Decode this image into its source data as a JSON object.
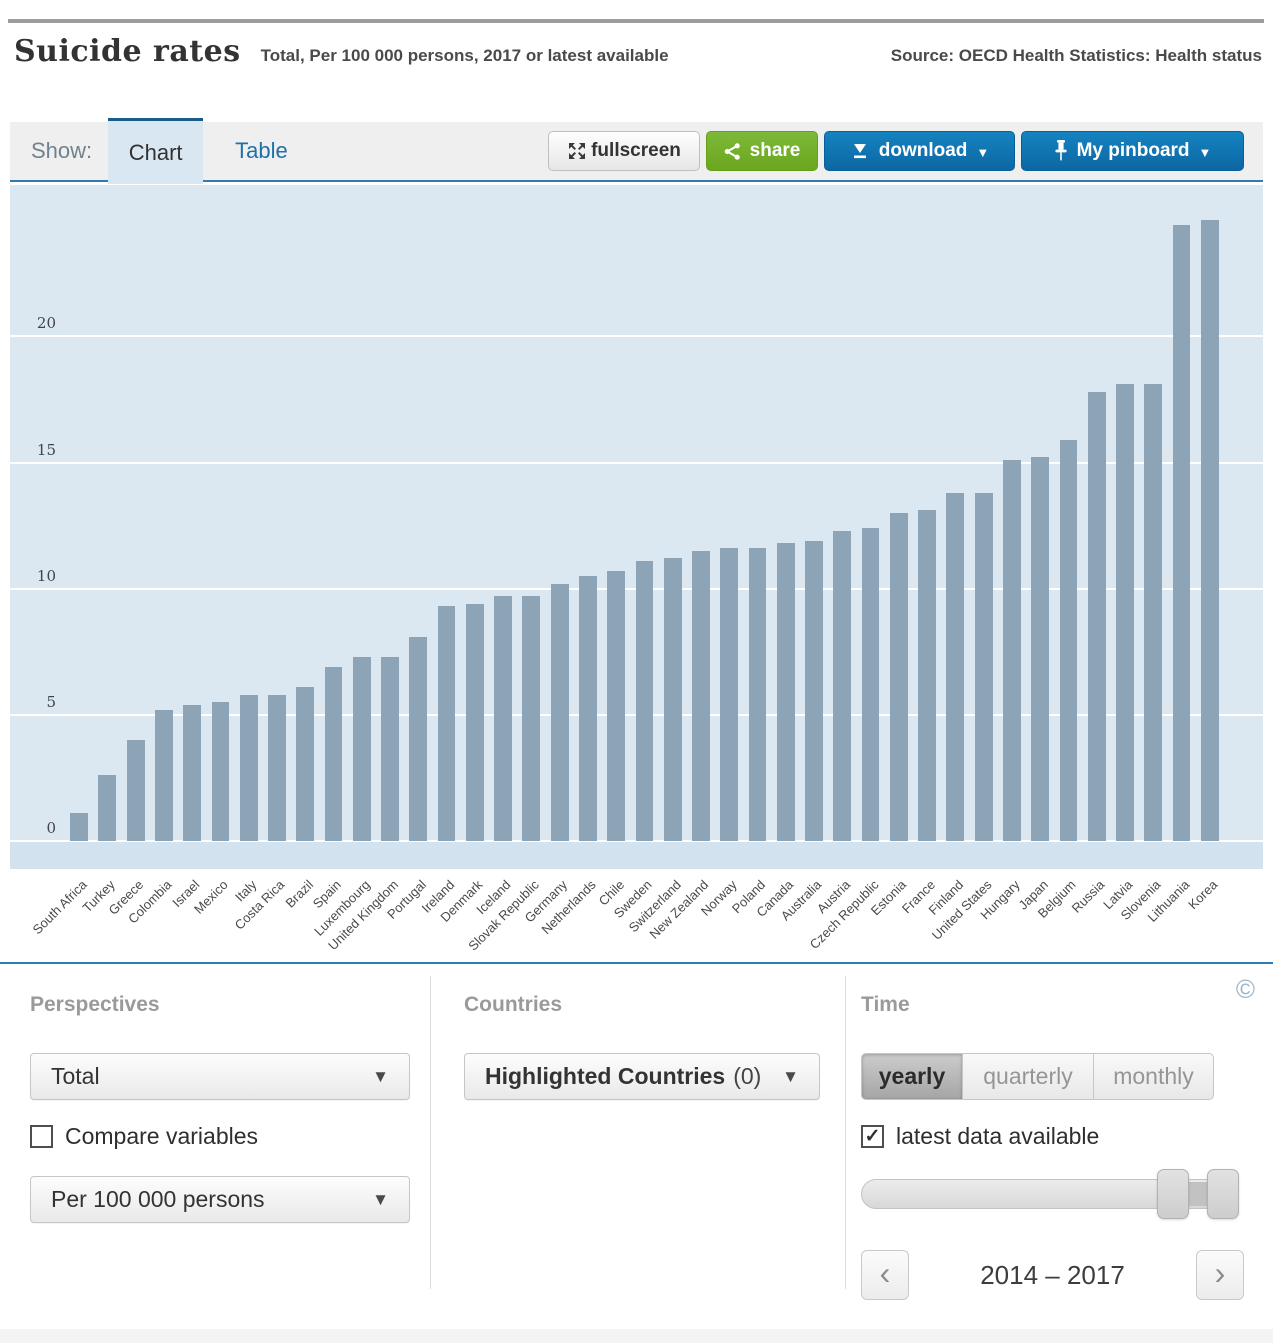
{
  "header": {
    "title": "Suicide rates",
    "subtitle": "Total, Per 100 000 persons, 2017 or latest available",
    "source": "Source: OECD Health Statistics: Health status"
  },
  "toolbar": {
    "show_label": "Show:",
    "tab_chart": "Chart",
    "tab_table": "Table",
    "fullscreen_label": "fullscreen",
    "share_label": "share",
    "download_label": "download",
    "pinboard_label": "My pinboard"
  },
  "icons": {
    "caret_down": "▼",
    "prev": "‹",
    "next": "›",
    "check": "✓",
    "copyright": "©"
  },
  "chart_data": {
    "type": "bar",
    "title": "Suicide rates",
    "ylabel": "Per 100 000 persons",
    "categories": [
      "South Africa",
      "Turkey",
      "Greece",
      "Colombia",
      "Israel",
      "Mexico",
      "Italy",
      "Costa Rica",
      "Brazil",
      "Spain",
      "Luxembourg",
      "United Kingdom",
      "Portugal",
      "Ireland",
      "Denmark",
      "Iceland",
      "Slovak Republic",
      "Germany",
      "Netherlands",
      "Chile",
      "Sweden",
      "Switzerland",
      "New Zealand",
      "Norway",
      "Poland",
      "Canada",
      "Australia",
      "Austria",
      "Czech Republic",
      "Estonia",
      "France",
      "Finland",
      "United States",
      "Hungary",
      "Japan",
      "Belgium",
      "Russia",
      "Latvia",
      "Slovenia",
      "Lithuania",
      "Korea"
    ],
    "values": [
      1.1,
      2.6,
      4.0,
      5.2,
      5.4,
      5.5,
      5.8,
      5.8,
      6.1,
      6.9,
      7.3,
      7.3,
      8.1,
      9.3,
      9.4,
      9.7,
      9.7,
      10.2,
      10.5,
      10.7,
      11.1,
      11.2,
      11.5,
      11.6,
      11.6,
      11.8,
      11.9,
      12.3,
      12.4,
      13.0,
      13.1,
      13.8,
      13.8,
      15.1,
      15.2,
      15.9,
      17.8,
      18.1,
      18.1,
      24.4,
      24.6
    ],
    "ylim": [
      0,
      26
    ],
    "yticks": [
      0,
      5,
      10,
      15,
      20
    ],
    "grid": "on",
    "legend": "none",
    "bar_color": "#8ca4b5",
    "plot_bg": "#dbe8f2"
  },
  "controls": {
    "perspectives": {
      "heading": "Perspectives",
      "variable_dropdown": "Total",
      "compare_label": "Compare variables",
      "compare_checked": false,
      "unit_dropdown": "Per 100 000 persons"
    },
    "countries": {
      "heading": "Countries",
      "dropdown_label": "Highlighted Countries",
      "dropdown_count": "(0)"
    },
    "time": {
      "heading": "Time",
      "frequencies": [
        "yearly",
        "quarterly",
        "monthly"
      ],
      "frequency_active": "yearly",
      "latest_label": "latest data available",
      "latest_checked": true,
      "range_label": "2014 – 2017"
    }
  },
  "colors": {
    "accent_blue": "#1074ae",
    "link_blue": "#1d71a8",
    "share_green": "#76b22a",
    "bar_color": "#8ca4b5"
  }
}
